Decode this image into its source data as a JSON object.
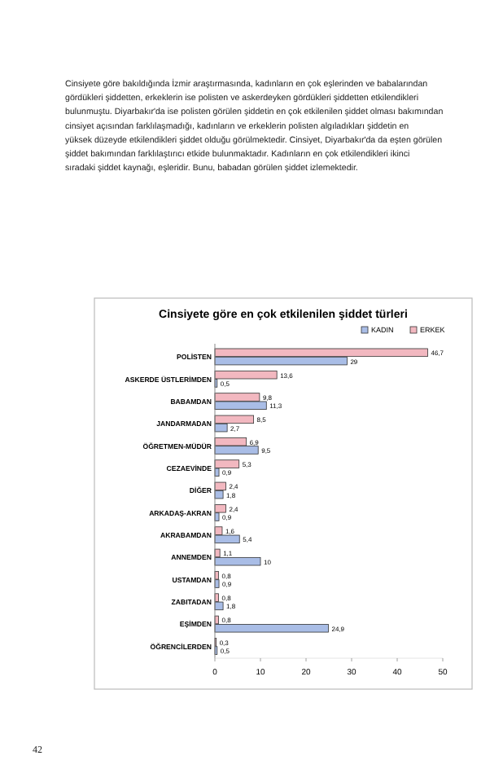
{
  "chart_data": {
    "type": "bar",
    "orientation": "horizontal",
    "title": "Cinsiyete göre en çok etkilenilen şiddet türleri",
    "categories": [
      "POLİSTEN",
      "ASKERDE ÜSTLERİMDEN",
      "BABAMDAN",
      "JANDARMADAN",
      "ÖĞRETMEN-MÜDÜR",
      "CEZAEVİNDE",
      "DİĞER",
      "ARKADAŞ-AKRAN",
      "AKRABAMDAN",
      "ANNEMDEN",
      "USTAMDAN",
      "ZABITADAN",
      "EŞİMDEN",
      "ÖĞRENCİLERDEN"
    ],
    "series": [
      {
        "name": "KADIN",
        "color": "#a9bde6",
        "values": [
          29,
          0.5,
          11.3,
          2.7,
          9.5,
          0.9,
          1.8,
          0.9,
          5.4,
          10,
          0.9,
          1.8,
          24.9,
          0.5
        ],
        "value_labels": [
          "29",
          "0,5",
          "11,3",
          "2,7",
          "9,5",
          "0,9",
          "1,8",
          "0,9",
          "5,4",
          "10",
          "0,9",
          "1,8",
          "24,9",
          "0,5"
        ]
      },
      {
        "name": "ERKEK",
        "color": "#f2b8c0",
        "values": [
          46.7,
          13.6,
          9.8,
          8.5,
          6.9,
          5.3,
          2.4,
          2.4,
          1.6,
          1.1,
          0.8,
          0.8,
          0.8,
          0.3
        ],
        "value_labels": [
          "46,7",
          "13,6",
          "9,8",
          "8,5",
          "6,9",
          "5,3",
          "2,4",
          "2,4",
          "1,6",
          "1,1",
          "0,8",
          "0,8",
          "0,8",
          "0,3"
        ]
      }
    ],
    "xlim": [
      0,
      50
    ],
    "xticks": [
      0,
      10,
      20,
      30,
      40,
      50
    ],
    "legend": "top right",
    "annotations": [
      "Cinsiyete göre bakıldığında İzmir araştırmasında, kadınların en çok eşlerinden ve babalarından gördükleri şiddetten, erkeklerin ise polisten ve askerdeyken gördükleri şiddetten etkilendikleri bulunmuştu. Diyarbakır'da ise polisten görülen şiddetin en çok etkilenilen şiddet olması bakımından cinsiyet açısından farklılaşmadığı, kadınların ve erkeklerin polisten algıladıkları şiddetin en yüksek düzeyde etkilendikleri şiddet olduğu görülmektedir. Cinsiyet, Diyarbakır'da da eşten görülen şiddet bakımından farklılaştırıcı etkide bulunmaktadır. Kadınların en çok etkilendikleri ikinci sıradaki şiddet kaynağı, eşleridir. Bunu, babadan görülen şiddet izlemektedir.",
      "42"
    ]
  }
}
